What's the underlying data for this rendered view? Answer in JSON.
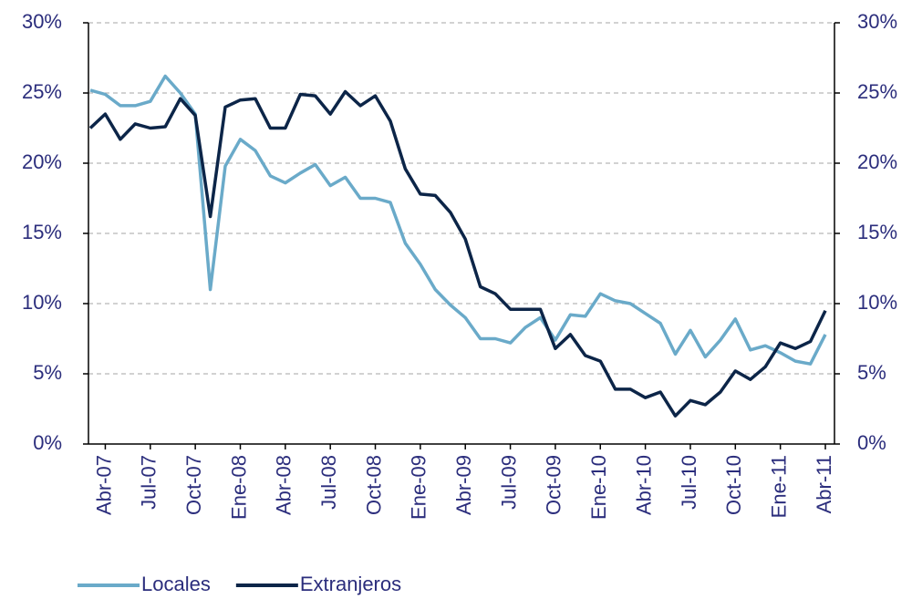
{
  "chart_data": {
    "type": "line",
    "categories": [
      null,
      "Abr-07",
      null,
      null,
      "Jul-07",
      null,
      null,
      "Oct-07",
      null,
      null,
      "Ene-08",
      null,
      null,
      "Abr-08",
      null,
      null,
      "Jul-08",
      null,
      null,
      "Oct-08",
      null,
      null,
      "Ene-09",
      null,
      null,
      "Abr-09",
      null,
      null,
      "Jul-09",
      null,
      null,
      "Oct-09",
      null,
      null,
      "Ene-10",
      null,
      null,
      "Abr-10",
      null,
      null,
      "Jul-10",
      null,
      null,
      "Oct-10",
      null,
      null,
      "Ene-11",
      null,
      null,
      "Abr-11"
    ],
    "series": [
      {
        "name": "Locales",
        "color": "#6aaac9",
        "values": [
          25.2,
          24.9,
          24.1,
          24.1,
          24.4,
          26.2,
          25.0,
          23.5,
          11.0,
          19.8,
          21.7,
          20.9,
          19.1,
          18.6,
          19.3,
          19.9,
          18.4,
          19.0,
          17.5,
          17.5,
          17.2,
          14.3,
          12.8,
          11.0,
          9.9,
          9.0,
          7.5,
          7.5,
          7.2,
          8.3,
          9.0,
          7.4,
          9.2,
          9.1,
          10.7,
          10.2,
          10.0,
          9.3,
          8.6,
          6.4,
          8.1,
          6.2,
          7.4,
          8.9,
          6.7,
          7.0,
          6.5,
          5.9,
          5.7,
          7.8
        ]
      },
      {
        "name": "Extranjeros",
        "color": "#0c2548",
        "values": [
          22.5,
          23.5,
          21.7,
          22.8,
          22.5,
          22.6,
          24.6,
          23.4,
          16.2,
          24.0,
          24.5,
          24.6,
          22.5,
          22.5,
          24.9,
          24.8,
          23.5,
          25.1,
          24.1,
          24.8,
          23.0,
          19.6,
          17.8,
          17.7,
          16.5,
          14.6,
          11.2,
          10.7,
          9.6,
          9.6,
          9.6,
          6.8,
          7.8,
          6.3,
          5.9,
          3.9,
          3.9,
          3.3,
          3.7,
          2.0,
          3.1,
          2.8,
          3.7,
          5.2,
          4.6,
          5.5,
          7.2,
          6.8,
          7.3,
          9.5
        ]
      }
    ],
    "ylim": [
      0,
      30
    ],
    "yticks": [
      {
        "value": 0,
        "label": "0%"
      },
      {
        "value": 5,
        "label": "5%"
      },
      {
        "value": 10,
        "label": "10%"
      },
      {
        "value": 15,
        "label": "15%"
      },
      {
        "value": 20,
        "label": "20%"
      },
      {
        "value": 25,
        "label": "25%"
      },
      {
        "value": 30,
        "label": "30%"
      }
    ],
    "y2lim": [
      0,
      30
    ],
    "y2ticks": [
      {
        "value": 0,
        "label": "0%"
      },
      {
        "value": 5,
        "label": "5%"
      },
      {
        "value": 10,
        "label": "10%"
      },
      {
        "value": 15,
        "label": "15%"
      },
      {
        "value": 20,
        "label": "20%"
      },
      {
        "value": 25,
        "label": "25%"
      },
      {
        "value": 30,
        "label": "30%"
      }
    ],
    "grid": true
  }
}
